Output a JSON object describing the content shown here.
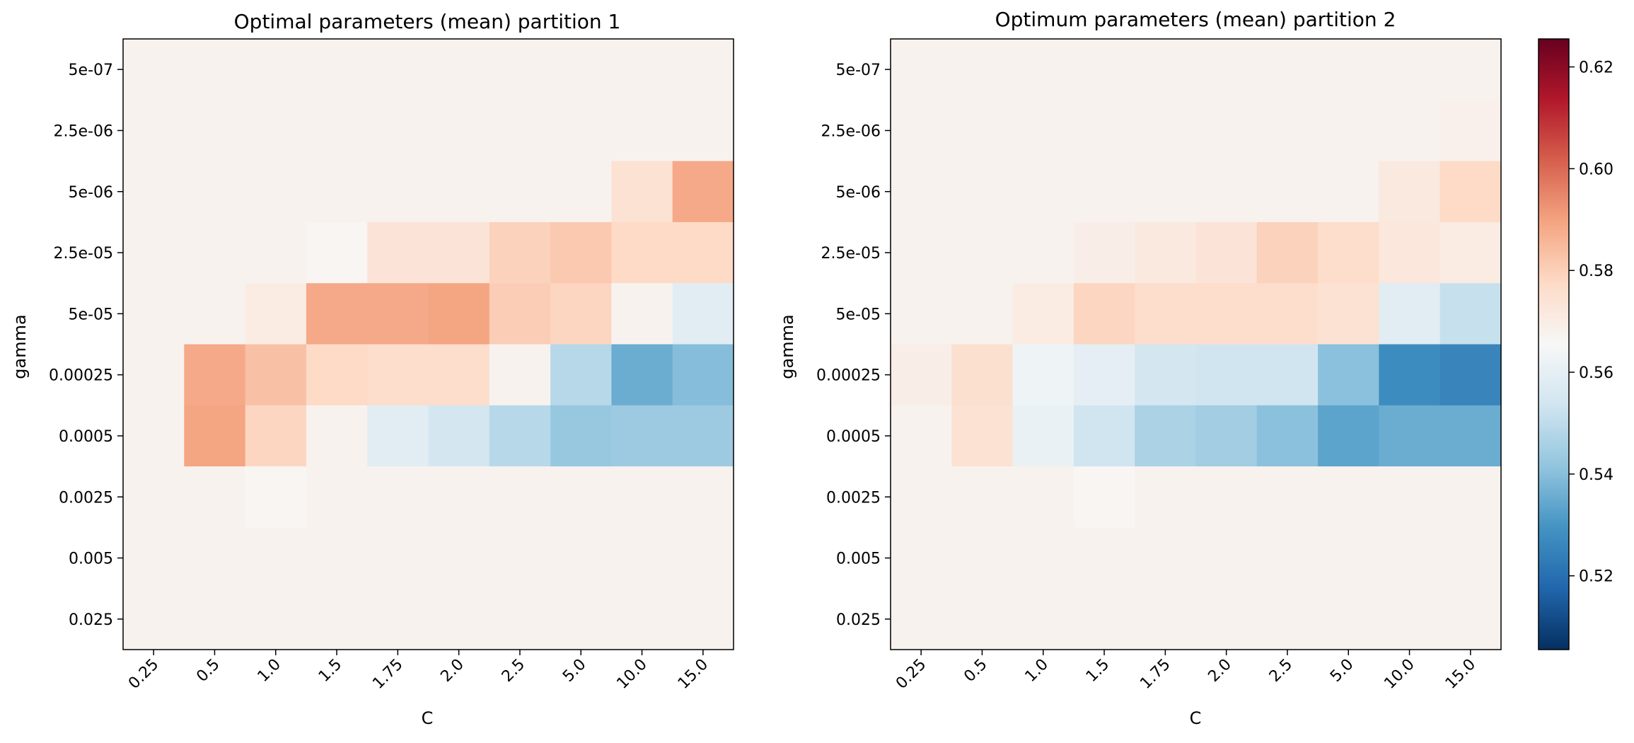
{
  "chart_data": [
    {
      "type": "heatmap",
      "title": "Optimal parameters (mean) partition 1",
      "xlabel": "C",
      "ylabel": "gamma",
      "x_categories": [
        "0.25",
        "0.5",
        "1.0",
        "1.5",
        "1.75",
        "2.0",
        "2.5",
        "5.0",
        "10.0",
        "15.0"
      ],
      "y_categories": [
        "5e-07",
        "2.5e-06",
        "5e-06",
        "2.5e-05",
        "5e-05",
        "0.00025",
        "0.0005",
        "0.0025",
        "0.005",
        "0.025"
      ],
      "values": [
        [
          0.5675,
          0.5675,
          0.5675,
          0.5675,
          0.5675,
          0.5675,
          0.5675,
          0.5675,
          0.5675,
          0.5675
        ],
        [
          0.5675,
          0.5675,
          0.5675,
          0.5675,
          0.5675,
          0.5675,
          0.5675,
          0.5675,
          0.5675,
          0.5675
        ],
        [
          0.5675,
          0.5675,
          0.5675,
          0.5675,
          0.5675,
          0.5675,
          0.5675,
          0.5675,
          0.5745,
          0.5885
        ],
        [
          0.5675,
          0.5675,
          0.5675,
          0.5665,
          0.5735,
          0.5735,
          0.5795,
          0.5815,
          0.5775,
          0.5775
        ],
        [
          0.5675,
          0.5675,
          0.5705,
          0.5885,
          0.5885,
          0.5895,
          0.5805,
          0.5785,
          0.5675,
          0.5585
        ],
        [
          0.5675,
          0.5885,
          0.5835,
          0.5775,
          0.5765,
          0.5765,
          0.5675,
          0.5485,
          0.5355,
          0.5395
        ],
        [
          0.5675,
          0.5895,
          0.5785,
          0.5675,
          0.5585,
          0.5545,
          0.5485,
          0.5425,
          0.5435,
          0.5435
        ],
        [
          0.5675,
          0.5675,
          0.5665,
          0.5675,
          0.5675,
          0.5675,
          0.5675,
          0.5675,
          0.5675,
          0.5675
        ],
        [
          0.5675,
          0.5675,
          0.5675,
          0.5675,
          0.5675,
          0.5675,
          0.5675,
          0.5675,
          0.5675,
          0.5675
        ],
        [
          0.5675,
          0.5675,
          0.5675,
          0.5675,
          0.5675,
          0.5675,
          0.5675,
          0.5675,
          0.5675,
          0.5675
        ]
      ]
    },
    {
      "type": "heatmap",
      "title": "Optimum parameters (mean) partition 2",
      "xlabel": "C",
      "ylabel": "gamma",
      "x_categories": [
        "0.25",
        "0.5",
        "1.0",
        "1.5",
        "1.75",
        "2.0",
        "2.5",
        "5.0",
        "10.0",
        "15.0"
      ],
      "y_categories": [
        "5e-07",
        "2.5e-06",
        "5e-06",
        "2.5e-05",
        "5e-05",
        "0.00025",
        "0.0005",
        "0.0025",
        "0.005",
        "0.025"
      ],
      "values": [
        [
          0.5675,
          0.5675,
          0.5675,
          0.5675,
          0.5675,
          0.5675,
          0.5675,
          0.5675,
          0.5675,
          0.5675
        ],
        [
          0.5675,
          0.5675,
          0.5675,
          0.5675,
          0.5675,
          0.5675,
          0.5675,
          0.5675,
          0.5675,
          0.5685
        ],
        [
          0.5675,
          0.5675,
          0.5675,
          0.5675,
          0.5675,
          0.5675,
          0.5675,
          0.5675,
          0.5715,
          0.5775
        ],
        [
          0.5675,
          0.5675,
          0.5675,
          0.5695,
          0.5715,
          0.5735,
          0.5795,
          0.5765,
          0.5725,
          0.5705
        ],
        [
          0.5675,
          0.5675,
          0.5705,
          0.5785,
          0.5765,
          0.5765,
          0.5765,
          0.5745,
          0.5585,
          0.5515
        ],
        [
          0.5695,
          0.5755,
          0.5625,
          0.5595,
          0.5545,
          0.5535,
          0.5535,
          0.5405,
          0.5275,
          0.5255
        ],
        [
          0.5675,
          0.5745,
          0.5615,
          0.5535,
          0.5465,
          0.5445,
          0.5405,
          0.5335,
          0.5355,
          0.5355
        ],
        [
          0.5675,
          0.5675,
          0.5675,
          0.5665,
          0.5675,
          0.5675,
          0.5675,
          0.5675,
          0.5675,
          0.5675
        ],
        [
          0.5675,
          0.5675,
          0.5675,
          0.5675,
          0.5675,
          0.5675,
          0.5675,
          0.5675,
          0.5675,
          0.5675
        ],
        [
          0.5675,
          0.5675,
          0.5675,
          0.5675,
          0.5675,
          0.5675,
          0.5675,
          0.5675,
          0.5675,
          0.5675
        ]
      ]
    }
  ],
  "colorbar": {
    "colormap": "RdBu_r",
    "range": [
      0.5055,
      0.6255
    ],
    "ticks": [
      "0.52",
      "0.54",
      "0.56",
      "0.58",
      "0.60",
      "0.62"
    ],
    "tick_values": [
      0.52,
      0.54,
      0.56,
      0.58,
      0.6,
      0.62
    ]
  }
}
